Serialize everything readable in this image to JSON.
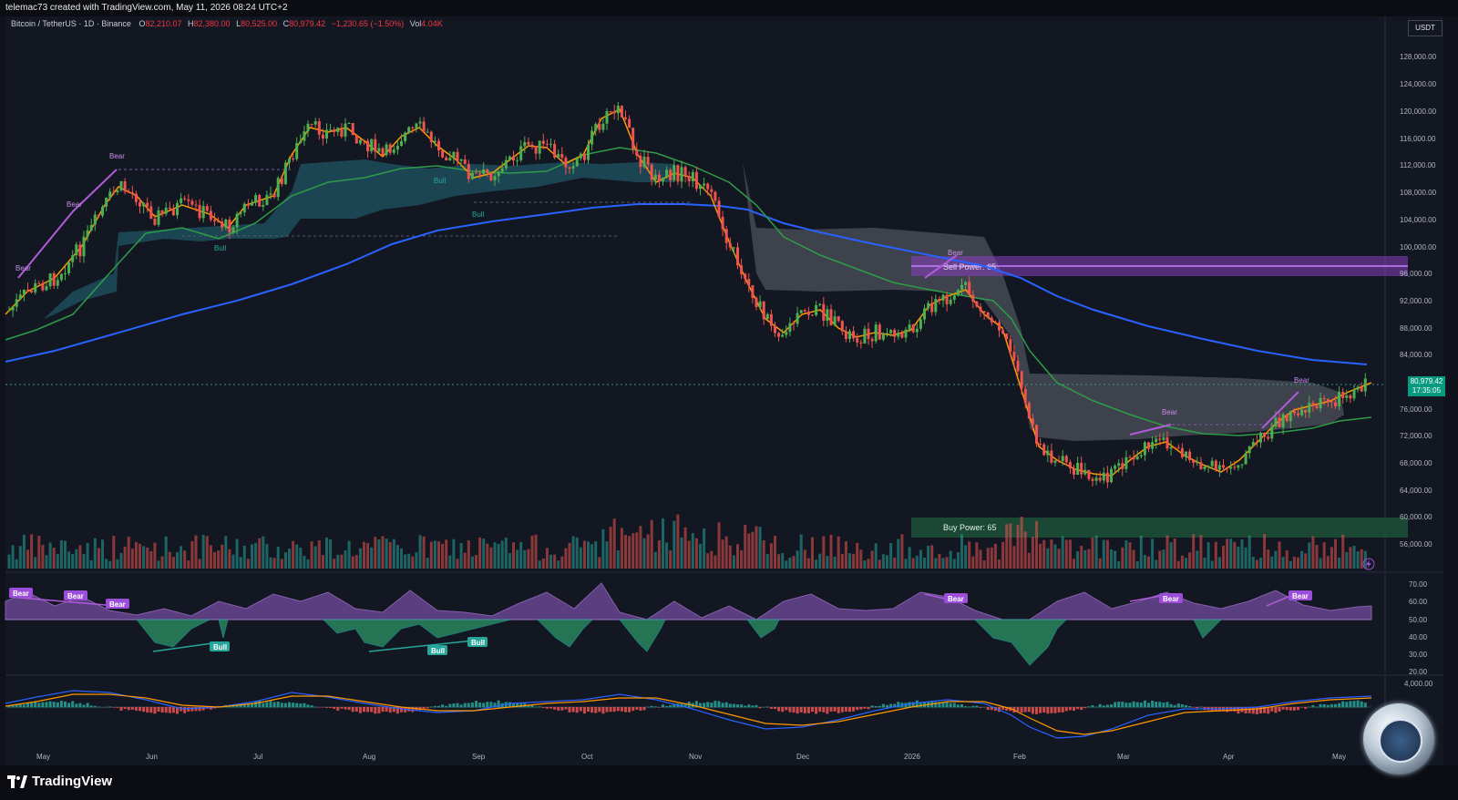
{
  "header": {
    "created_by": "telemac73 created with TradingView.com, May 11, 2026 08:24 UTC+2"
  },
  "symbol": {
    "name": "Bitcoin / TetherUS · 1D · Binance",
    "open_label": "O",
    "open": "82,210.07",
    "high_label": "H",
    "high": "82,380.00",
    "low_label": "L",
    "low": "80,525.00",
    "close_label": "C",
    "close": "80,979.42",
    "change": "−1,230.65 (−1.50%)",
    "vol_label": "Vol",
    "vol": "4.04K"
  },
  "currency": "USDT",
  "price_tag": {
    "price": "80,979.42",
    "countdown": "17:35:05"
  },
  "price_axis": [
    "128,000.00",
    "124,000.00",
    "120,000.00",
    "116,000.00",
    "112,000.00",
    "108,000.00",
    "104,000.00",
    "100,000.00",
    "96,000.00",
    "92,000.00",
    "88,000.00",
    "84,000.00",
    "76,000.00",
    "72,000.00",
    "68,000.00",
    "64,000.00",
    "60,000.00",
    "56,000.00"
  ],
  "rsi_axis": [
    "70.00",
    "60.00",
    "50.00",
    "40.00",
    "30.00",
    "20.00"
  ],
  "macd_axis": [
    "4,000.00"
  ],
  "time_axis": [
    "May",
    "Jun",
    "Jul",
    "Aug",
    "Sep",
    "Oct",
    "Nov",
    "Dec",
    "2026",
    "Feb",
    "Mar",
    "Apr",
    "May"
  ],
  "zones": {
    "sell": "Sell Power: 65",
    "buy": "Buy Power: 65"
  },
  "labels": {
    "bear": "Bear",
    "bull": "Bull"
  },
  "colors": {
    "background": "#131722",
    "up_candle": "#4caf50",
    "down_candle": "#ef5350",
    "ema_fast": "#ff9800",
    "ema_mid": "#2e9c48",
    "ma_slow": "#2962ff",
    "cloud_bull": "#1f4e5c",
    "cloud_bear": "#4a4d57",
    "sell_zone": "#8a3fc0",
    "buy_zone": "#1f5a3c",
    "divergence_bear": "#b05bd9",
    "divergence_bull": "#26a69a"
  },
  "branding": {
    "logo_text": "TradingView"
  }
}
